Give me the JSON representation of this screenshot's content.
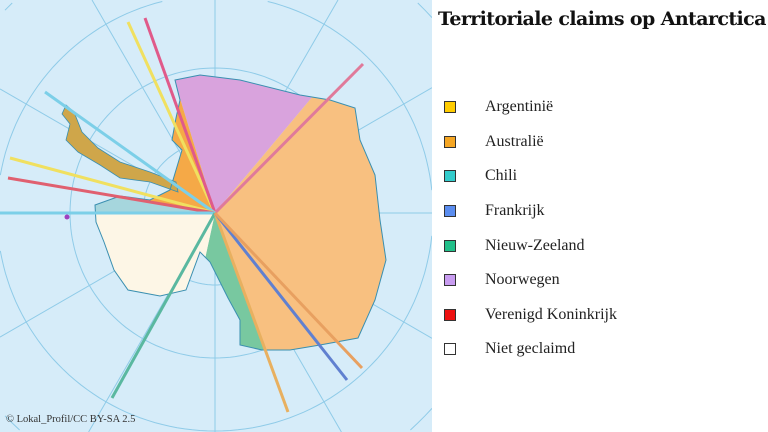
{
  "title": "Territoriale claims op Antarctica",
  "legend": [
    {
      "label": "Argentinië",
      "color": "#ffcc00"
    },
    {
      "label": "Australië",
      "color": "#f5a623"
    },
    {
      "label": "Chili",
      "color": "#33cccc"
    },
    {
      "label": "Frankrijk",
      "color": "#5b8def"
    },
    {
      "label": "Nieuw-Zeeland",
      "color": "#22c08a"
    },
    {
      "label": "Noorwegen",
      "color": "#c89cf0"
    },
    {
      "label": "Verenigd Koninkrijk",
      "color": "#ee1111"
    },
    {
      "label": "Niet geclaimd",
      "color": "#ffffff"
    }
  ],
  "credit": "© Lokal_Profil/CC  BY-SA 2.5",
  "colors": {
    "ocean": "#d6ecf9",
    "grid": "#8fcbe8",
    "norway_fill": "#d9a3dd",
    "australia_fill": "#f8c080",
    "nz_fill": "#78c8a0",
    "unclaimed_fill": "#fdf6e6",
    "peninsula_fill": "#cfa64a",
    "france_fill": "#7b8fd6",
    "chile_fill": "#a6d6dd"
  }
}
